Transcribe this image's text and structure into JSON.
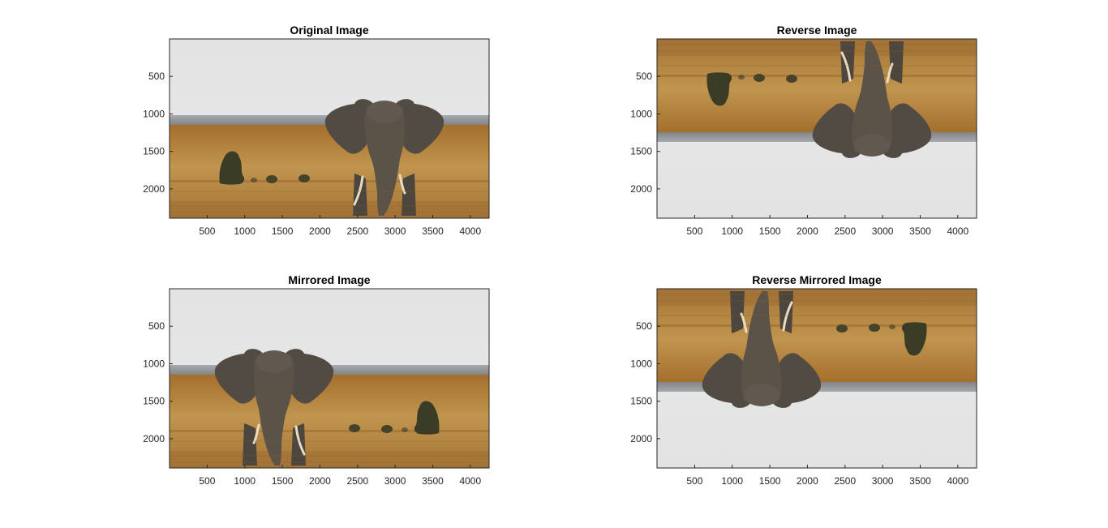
{
  "figure": {
    "background": "#ffffff",
    "panels": [
      {
        "title": "Original Image",
        "transform": "none",
        "x_ticks": [
          "500",
          "1000",
          "1500",
          "2000",
          "2500",
          "3000",
          "3500",
          "4000"
        ],
        "y_ticks": [
          "500",
          "1000",
          "1500",
          "2000"
        ]
      },
      {
        "title": "Reverse Image",
        "transform": "vertical-flip",
        "x_ticks": [
          "500",
          "1000",
          "1500",
          "2000",
          "2500",
          "3000",
          "3500",
          "4000"
        ],
        "y_ticks": [
          "500",
          "1000",
          "1500",
          "2000"
        ]
      },
      {
        "title": "Mirrored Image",
        "transform": "horizontal-flip",
        "x_ticks": [
          "500",
          "1000",
          "1500",
          "2000",
          "2500",
          "3000",
          "3500",
          "4000"
        ],
        "y_ticks": [
          "500",
          "1000",
          "1500",
          "2000"
        ]
      },
      {
        "title": "Reverse Mirrored Image",
        "transform": "vertical-and-horizontal-flip",
        "x_ticks": [
          "500",
          "1000",
          "1500",
          "2000",
          "2500",
          "3000",
          "3500",
          "4000"
        ],
        "y_ticks": [
          "500",
          "1000",
          "1500",
          "2000"
        ]
      }
    ],
    "axis_range": {
      "x": [
        0,
        4250
      ],
      "y": [
        0,
        2390
      ]
    },
    "scene_colors": {
      "sky": "#e4e5e5",
      "horizon_haze": "#8d8f94",
      "grass_dark": "#a06f2d",
      "grass_light": "#c79a52",
      "elephant": "#5a5045",
      "bush": "#3a3a26"
    }
  }
}
